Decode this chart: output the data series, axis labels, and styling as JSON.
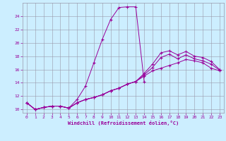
{
  "xlabel": "Windchill (Refroidissement éolien,°C)",
  "bg_color": "#cceeff",
  "line_color": "#990099",
  "xlim": [
    -0.5,
    23.5
  ],
  "ylim": [
    9.5,
    26.0
  ],
  "yticks": [
    10,
    12,
    14,
    16,
    18,
    20,
    22,
    24
  ],
  "xticks": [
    0,
    1,
    2,
    3,
    4,
    5,
    6,
    7,
    8,
    9,
    10,
    11,
    12,
    13,
    14,
    15,
    16,
    17,
    18,
    19,
    20,
    21,
    22,
    23
  ],
  "curves": [
    {
      "x": [
        0,
        1,
        2,
        3,
        4,
        5,
        6,
        7,
        8,
        9,
        10,
        11,
        12,
        13,
        14
      ],
      "y": [
        11.0,
        10.0,
        10.3,
        10.5,
        10.5,
        10.2,
        11.5,
        13.5,
        17.0,
        20.5,
        23.5,
        25.3,
        25.4,
        25.4,
        14.2
      ]
    },
    {
      "x": [
        0,
        1,
        2,
        3,
        4,
        5,
        6,
        7,
        8,
        9,
        10,
        11,
        12,
        13,
        14,
        15,
        16,
        17,
        18,
        19,
        20,
        21,
        22,
        23
      ],
      "y": [
        11.0,
        10.0,
        10.3,
        10.5,
        10.5,
        10.2,
        11.0,
        11.5,
        11.8,
        12.2,
        12.8,
        13.2,
        13.8,
        14.2,
        15.0,
        15.8,
        16.2,
        16.6,
        17.0,
        17.5,
        17.3,
        17.0,
        16.2,
        15.8
      ]
    },
    {
      "x": [
        0,
        1,
        2,
        3,
        4,
        5,
        6,
        7,
        8,
        9,
        10,
        11,
        12,
        13,
        14,
        15,
        16,
        17,
        18,
        19,
        20,
        21,
        22,
        23
      ],
      "y": [
        11.0,
        10.0,
        10.3,
        10.5,
        10.5,
        10.2,
        11.0,
        11.5,
        11.8,
        12.2,
        12.8,
        13.2,
        13.8,
        14.2,
        15.2,
        16.3,
        17.8,
        18.3,
        17.6,
        18.2,
        17.6,
        17.3,
        16.8,
        15.9
      ]
    },
    {
      "x": [
        0,
        1,
        2,
        3,
        4,
        5,
        6,
        7,
        8,
        9,
        10,
        11,
        12,
        13,
        14,
        15,
        16,
        17,
        18,
        19,
        20,
        21,
        22,
        23
      ],
      "y": [
        11.0,
        10.0,
        10.3,
        10.5,
        10.5,
        10.2,
        11.0,
        11.5,
        11.8,
        12.2,
        12.8,
        13.2,
        13.8,
        14.2,
        15.4,
        16.8,
        18.5,
        18.8,
        18.2,
        18.7,
        18.0,
        17.8,
        17.2,
        16.0
      ]
    }
  ]
}
